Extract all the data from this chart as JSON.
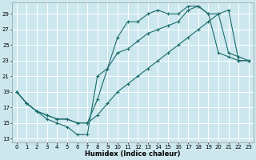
{
  "bg_color": "#cce8ee",
  "grid_color": "#ffffff",
  "line_color": "#1a6b6b",
  "xlabel": "Humidex (Indice chaleur)",
  "xlim": [
    -0.5,
    23.5
  ],
  "ylim": [
    12.5,
    30.5
  ],
  "yticks": [
    13,
    15,
    17,
    19,
    21,
    23,
    25,
    27,
    29
  ],
  "xticks": [
    0,
    1,
    2,
    3,
    4,
    5,
    6,
    7,
    8,
    9,
    10,
    11,
    12,
    13,
    14,
    15,
    16,
    17,
    18,
    19,
    20,
    21,
    22,
    23
  ],
  "line1_x": [
    0,
    1,
    2,
    3,
    4,
    5,
    6,
    7,
    8,
    9,
    10,
    11,
    12,
    13,
    14,
    15,
    16,
    17,
    18,
    19,
    20,
    21,
    22,
    23
  ],
  "line1_y": [
    19,
    17.5,
    16.5,
    15.5,
    15,
    14.5,
    13.5,
    13.5,
    21,
    22,
    26,
    28,
    28,
    29,
    29.5,
    29,
    29,
    30,
    30,
    29,
    24,
    23.5,
    23,
    23
  ],
  "line2_x": [
    0,
    1,
    2,
    3,
    4,
    5,
    6,
    7,
    8,
    9,
    10,
    11,
    12,
    13,
    14,
    15,
    16,
    17,
    18,
    19,
    20,
    21,
    22,
    23
  ],
  "line2_y": [
    19,
    17.5,
    16.5,
    16,
    15.5,
    15.5,
    15,
    15,
    18,
    22,
    24,
    24.5,
    25.5,
    26.5,
    27,
    27.5,
    28,
    29.5,
    30,
    29,
    29,
    24,
    23.5,
    23
  ],
  "line3_x": [
    0,
    1,
    2,
    3,
    4,
    5,
    6,
    7,
    8,
    9,
    10,
    11,
    12,
    13,
    14,
    15,
    16,
    17,
    18,
    19,
    20,
    21,
    22,
    23
  ],
  "line3_y": [
    19,
    17.5,
    16.5,
    16,
    15.5,
    15.5,
    15,
    15,
    16,
    17.5,
    19,
    20,
    21,
    22,
    23,
    24,
    25,
    26,
    27,
    28,
    29,
    29.5,
    23,
    23
  ]
}
